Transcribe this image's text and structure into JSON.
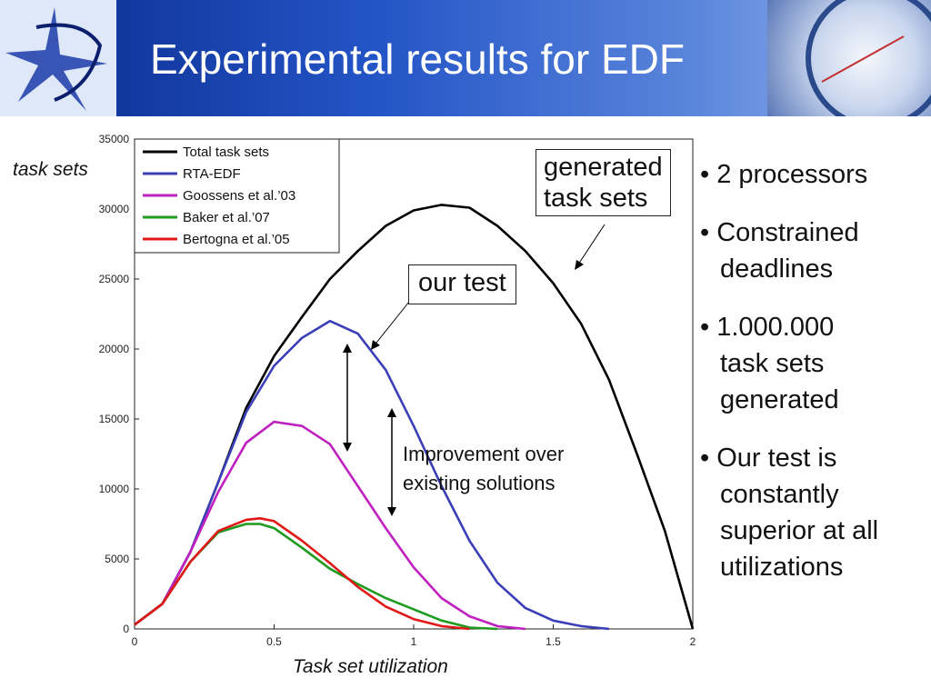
{
  "slide": {
    "title": "Experimental results for EDF",
    "bullets": [
      [
        "2 processors"
      ],
      [
        "Constrained",
        "deadlines"
      ],
      [
        "1.000.000",
        "task sets",
        "generated"
      ],
      [
        "Our test is",
        "constantly",
        "superior at all",
        "utilizations"
      ]
    ],
    "callouts": {
      "generated": [
        "generated",
        "task sets"
      ],
      "our_test": "our test",
      "improvement": [
        "Improvement over",
        "existing solutions"
      ]
    }
  },
  "chart_data": {
    "type": "line",
    "xlabel": "Task set utilization",
    "ylabel": "task sets",
    "xlim": [
      0,
      2
    ],
    "ylim": [
      0,
      35000
    ],
    "x_ticks": [
      "0",
      "0.5",
      "1",
      "1.5",
      "2"
    ],
    "y_ticks": [
      "0",
      "5000",
      "10000",
      "15000",
      "20000",
      "25000",
      "30000",
      "35000"
    ],
    "legend_position": "top-left",
    "series": [
      {
        "name": "Total task sets",
        "color": "#000000",
        "points": [
          [
            0,
            300
          ],
          [
            0.1,
            1800
          ],
          [
            0.2,
            5500
          ],
          [
            0.3,
            10500
          ],
          [
            0.4,
            15800
          ],
          [
            0.5,
            19500
          ],
          [
            0.6,
            22300
          ],
          [
            0.7,
            25000
          ],
          [
            0.8,
            27000
          ],
          [
            0.9,
            28800
          ],
          [
            1.0,
            29900
          ],
          [
            1.1,
            30300
          ],
          [
            1.2,
            30100
          ],
          [
            1.3,
            28800
          ],
          [
            1.4,
            27000
          ],
          [
            1.5,
            24700
          ],
          [
            1.6,
            21800
          ],
          [
            1.7,
            17800
          ],
          [
            1.8,
            12500
          ],
          [
            1.9,
            7000
          ],
          [
            2.0,
            0
          ]
        ]
      },
      {
        "name": "RTA-EDF",
        "color": "#3a3fb8",
        "points": [
          [
            0,
            300
          ],
          [
            0.1,
            1800
          ],
          [
            0.2,
            5500
          ],
          [
            0.3,
            10500
          ],
          [
            0.4,
            15500
          ],
          [
            0.5,
            18800
          ],
          [
            0.6,
            20800
          ],
          [
            0.7,
            22000
          ],
          [
            0.8,
            21100
          ],
          [
            0.9,
            18500
          ],
          [
            1.0,
            14500
          ],
          [
            1.1,
            10200
          ],
          [
            1.2,
            6300
          ],
          [
            1.3,
            3300
          ],
          [
            1.4,
            1500
          ],
          [
            1.5,
            600
          ],
          [
            1.6,
            200
          ],
          [
            1.7,
            0
          ]
        ]
      },
      {
        "name": "Goossens et al.’03",
        "color": "#c020c0",
        "points": [
          [
            0,
            300
          ],
          [
            0.1,
            1800
          ],
          [
            0.2,
            5500
          ],
          [
            0.3,
            9800
          ],
          [
            0.4,
            13300
          ],
          [
            0.5,
            14800
          ],
          [
            0.6,
            14500
          ],
          [
            0.7,
            13200
          ],
          [
            0.8,
            10200
          ],
          [
            0.9,
            7200
          ],
          [
            1.0,
            4400
          ],
          [
            1.1,
            2200
          ],
          [
            1.2,
            900
          ],
          [
            1.3,
            200
          ],
          [
            1.4,
            0
          ]
        ]
      },
      {
        "name": "Baker et al.’07",
        "color": "#1e9a1e",
        "points": [
          [
            0,
            300
          ],
          [
            0.1,
            1800
          ],
          [
            0.2,
            4800
          ],
          [
            0.3,
            6900
          ],
          [
            0.4,
            7500
          ],
          [
            0.45,
            7500
          ],
          [
            0.5,
            7200
          ],
          [
            0.6,
            5800
          ],
          [
            0.7,
            4300
          ],
          [
            0.8,
            3200
          ],
          [
            0.9,
            2200
          ],
          [
            1.0,
            1400
          ],
          [
            1.1,
            600
          ],
          [
            1.2,
            100
          ],
          [
            1.3,
            0
          ]
        ]
      },
      {
        "name": "Bertogna et al.’05",
        "color": "#e01818",
        "points": [
          [
            0,
            300
          ],
          [
            0.1,
            1800
          ],
          [
            0.2,
            4800
          ],
          [
            0.3,
            7000
          ],
          [
            0.4,
            7800
          ],
          [
            0.45,
            7900
          ],
          [
            0.5,
            7700
          ],
          [
            0.6,
            6300
          ],
          [
            0.7,
            4700
          ],
          [
            0.8,
            3000
          ],
          [
            0.9,
            1600
          ],
          [
            1.0,
            700
          ],
          [
            1.1,
            200
          ],
          [
            1.2,
            0
          ]
        ]
      }
    ]
  }
}
